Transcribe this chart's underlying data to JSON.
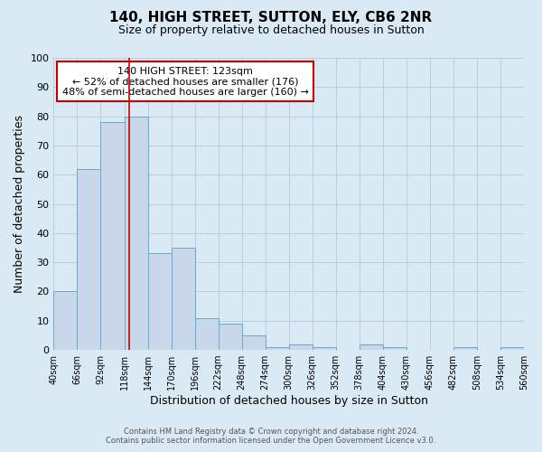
{
  "title1": "140, HIGH STREET, SUTTON, ELY, CB6 2NR",
  "title2": "Size of property relative to detached houses in Sutton",
  "xlabel": "Distribution of detached houses by size in Sutton",
  "ylabel": "Number of detached properties",
  "bar_edges": [
    40,
    66,
    92,
    118,
    144,
    170,
    196,
    222,
    248,
    274,
    300,
    326,
    352,
    378,
    404,
    430,
    456,
    482,
    508,
    534,
    560
  ],
  "bar_heights": [
    20,
    62,
    78,
    80,
    33,
    35,
    11,
    9,
    5,
    1,
    2,
    1,
    0,
    2,
    1,
    0,
    0,
    1,
    0,
    1
  ],
  "bar_color": "#c8d8ea",
  "bar_edgecolor": "#6aaac8",
  "bar_linewidth": 0.7,
  "grid_color": "#b0ccd8",
  "background_color": "#daeaf4",
  "vline_x": 123,
  "vline_color": "#cc0000",
  "ylim": [
    0,
    100
  ],
  "annotation_text": "140 HIGH STREET: 123sqm\n← 52% of detached houses are smaller (176)\n48% of semi-detached houses are larger (160) →",
  "annotation_box_color": "#ffffff",
  "annotation_box_edgecolor": "#cc0000",
  "footer1": "Contains HM Land Registry data © Crown copyright and database right 2024.",
  "footer2": "Contains public sector information licensed under the Open Government Licence v3.0.",
  "tick_labels": [
    "40sqm",
    "66sqm",
    "92sqm",
    "118sqm",
    "144sqm",
    "170sqm",
    "196sqm",
    "222sqm",
    "248sqm",
    "274sqm",
    "300sqm",
    "326sqm",
    "352sqm",
    "378sqm",
    "404sqm",
    "430sqm",
    "456sqm",
    "482sqm",
    "508sqm",
    "534sqm",
    "560sqm"
  ],
  "yticks": [
    0,
    10,
    20,
    30,
    40,
    50,
    60,
    70,
    80,
    90,
    100
  ],
  "title1_fontsize": 11,
  "title2_fontsize": 9,
  "xlabel_fontsize": 9,
  "ylabel_fontsize": 9,
  "annot_fontsize": 8,
  "footer_fontsize": 6,
  "xtick_fontsize": 7,
  "ytick_fontsize": 8
}
